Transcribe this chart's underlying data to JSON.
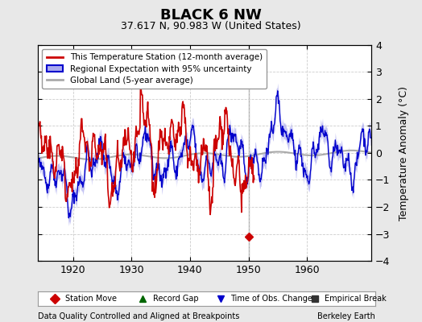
{
  "title": "BLACK 6 NW",
  "subtitle": "37.617 N, 90.983 W (United States)",
  "ylabel": "Temperature Anomaly (°C)",
  "xlabel_note": "Data Quality Controlled and Aligned at Breakpoints",
  "credit": "Berkeley Earth",
  "xmin": 1914,
  "xmax": 1971,
  "ymin": -4,
  "ymax": 4,
  "yticks": [
    -4,
    -3,
    -2,
    -1,
    0,
    1,
    2,
    3,
    4
  ],
  "xticks": [
    1920,
    1930,
    1940,
    1950,
    1960
  ],
  "bg_color": "#e8e8e8",
  "plot_bg_color": "#ffffff",
  "red_line_color": "#cc0000",
  "blue_line_color": "#0000cc",
  "blue_fill_color": "#aaaaee",
  "gray_line_color": "#aaaaaa",
  "vertical_line_x": 1950,
  "station_move_x": 1950,
  "station_move_y": -3.1,
  "legend_loc": "upper left"
}
